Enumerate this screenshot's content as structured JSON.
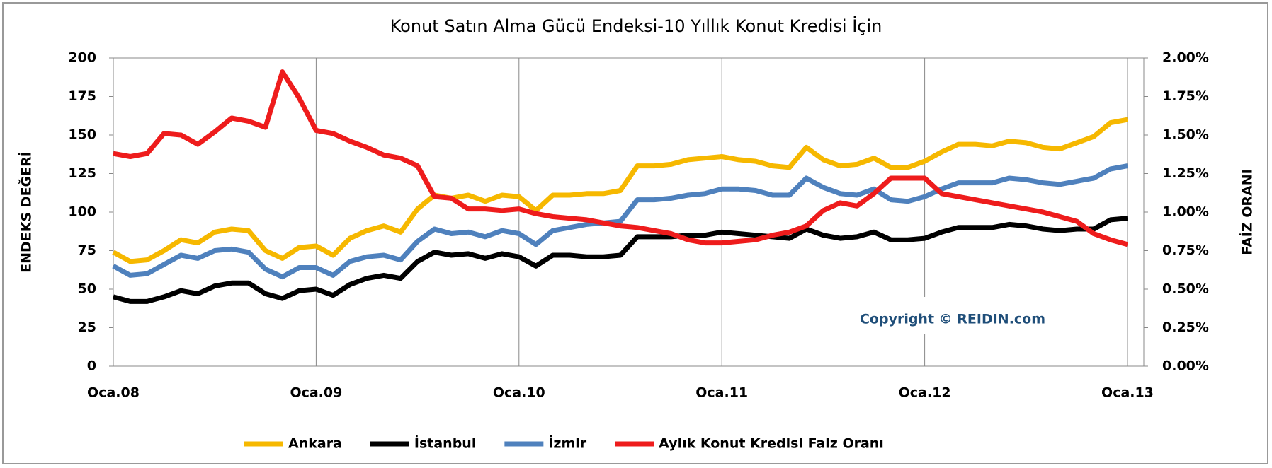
{
  "chart_data": {
    "type": "line",
    "title": "Konut Satın Alma Gücü Endeksi-10 Yıllık Konut Kredisi İçin",
    "y_label": "ENDEKS DEĞERİ",
    "y2_label": "FAİZ ORANI",
    "annotation": "Copyright © REIDIN.com",
    "categories": [
      "Oca.08",
      null,
      null,
      null,
      null,
      null,
      null,
      null,
      null,
      null,
      null,
      null,
      "Oca.09",
      null,
      null,
      null,
      null,
      null,
      null,
      null,
      null,
      null,
      null,
      null,
      "Oca.10",
      null,
      null,
      null,
      null,
      null,
      null,
      null,
      null,
      null,
      null,
      null,
      "Oca.11",
      null,
      null,
      null,
      null,
      null,
      null,
      null,
      null,
      null,
      null,
      null,
      "Oca.12",
      null,
      null,
      null,
      null,
      null,
      null,
      null,
      null,
      null,
      null,
      null,
      "Oca.13"
    ],
    "series": [
      {
        "name": "Ankara",
        "color": "#f6b800",
        "values": [
          74,
          68,
          69,
          75,
          82,
          80,
          87,
          89,
          88,
          75,
          70,
          77,
          78,
          72,
          83,
          88,
          91,
          87,
          102,
          111,
          109,
          111,
          107,
          111,
          110,
          101,
          111,
          111,
          112,
          112,
          114,
          130,
          130,
          131,
          134,
          135,
          136,
          134,
          133,
          130,
          129,
          142,
          134,
          130,
          131,
          135,
          129,
          129,
          133,
          139,
          144,
          144,
          143,
          146,
          145,
          142,
          141,
          145,
          149,
          158,
          160
        ]
      },
      {
        "name": "İstanbul",
        "color": "#000000",
        "values": [
          45,
          42,
          42,
          45,
          49,
          47,
          52,
          54,
          54,
          47,
          44,
          49,
          50,
          46,
          53,
          57,
          59,
          57,
          68,
          74,
          72,
          73,
          70,
          73,
          71,
          65,
          72,
          72,
          71,
          71,
          72,
          84,
          84,
          84,
          85,
          85,
          87,
          86,
          85,
          84,
          83,
          89,
          85,
          83,
          84,
          87,
          82,
          82,
          83,
          87,
          90,
          90,
          90,
          92,
          91,
          89,
          88,
          89,
          89,
          95,
          96
        ]
      },
      {
        "name": "İzmir",
        "color": "#4f81bd",
        "values": [
          65,
          59,
          60,
          66,
          72,
          70,
          75,
          76,
          74,
          63,
          58,
          64,
          64,
          59,
          68,
          71,
          72,
          69,
          81,
          89,
          86,
          87,
          84,
          88,
          86,
          79,
          88,
          90,
          92,
          93,
          94,
          108,
          108,
          109,
          111,
          112,
          115,
          115,
          114,
          111,
          111,
          122,
          116,
          112,
          111,
          115,
          108,
          107,
          110,
          115,
          119,
          119,
          119,
          122,
          121,
          119,
          118,
          120,
          122,
          128,
          130
        ]
      },
      {
        "name": "Aylık Konut Kredisi Faiz Oranı",
        "color": "#ee1c1c",
        "axis": "y2",
        "values": [
          1.38,
          1.36,
          1.38,
          1.51,
          1.5,
          1.44,
          1.52,
          1.61,
          1.59,
          1.55,
          1.91,
          1.74,
          1.53,
          1.51,
          1.46,
          1.42,
          1.37,
          1.35,
          1.3,
          1.1,
          1.09,
          1.02,
          1.02,
          1.01,
          1.02,
          0.99,
          0.97,
          0.96,
          0.95,
          0.93,
          0.91,
          0.9,
          0.88,
          0.86,
          0.82,
          0.8,
          0.8,
          0.81,
          0.82,
          0.85,
          0.87,
          0.91,
          1.01,
          1.06,
          1.04,
          1.12,
          1.22,
          1.22,
          1.22,
          1.12,
          1.1,
          1.08,
          1.06,
          1.04,
          1.02,
          1.0,
          0.97,
          0.94,
          0.86,
          0.82,
          0.79
        ]
      }
    ],
    "ylim": [
      0,
      200
    ],
    "yticks": [
      0,
      25,
      50,
      75,
      100,
      125,
      150,
      175,
      200
    ],
    "y2lim": [
      0,
      2
    ],
    "y2ticks": [
      {
        "value": 0,
        "label": "0.00%"
      },
      {
        "value": 0.25,
        "label": "0.25%"
      },
      {
        "value": 0.5,
        "label": "0.50%"
      },
      {
        "value": 0.75,
        "label": "0.75%"
      },
      {
        "value": 1,
        "label": "1.00%"
      },
      {
        "value": 1.25,
        "label": "1.25%"
      },
      {
        "value": 1.5,
        "label": "1.50%"
      },
      {
        "value": 1.75,
        "label": "1.75%"
      },
      {
        "value": 2,
        "label": "2.00%"
      }
    ],
    "grid": "x",
    "legend": "bottom"
  }
}
